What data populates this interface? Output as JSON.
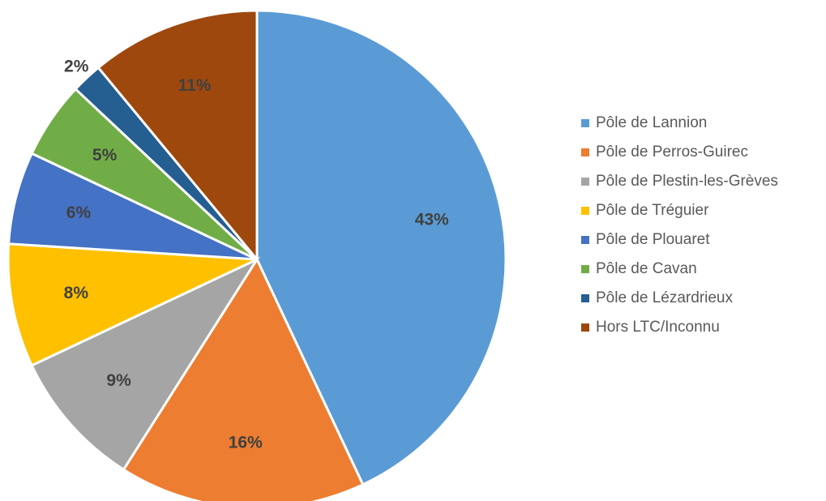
{
  "chart_data": {
    "type": "pie",
    "categories": [
      "Pôle de Lannion",
      "Pôle de Perros-Guirec",
      "Pôle de Plestin-les-Grèves",
      "Pôle de Tréguier",
      "Pôle de Plouaret",
      "Pôle de Cavan",
      "Pôle de Lézardrieux",
      "Hors LTC/Inconnu"
    ],
    "values": [
      43,
      16,
      9,
      8,
      6,
      5,
      2,
      11
    ],
    "value_labels": [
      "43%",
      "16%",
      "9%",
      "8%",
      "6%",
      "5%",
      "2%",
      "11%"
    ],
    "colors": [
      "#5b9bd5",
      "#ed7d31",
      "#a5a5a5",
      "#ffc000",
      "#4472c4",
      "#70ad47",
      "#255e91",
      "#9e480e"
    ],
    "legend": "right"
  }
}
